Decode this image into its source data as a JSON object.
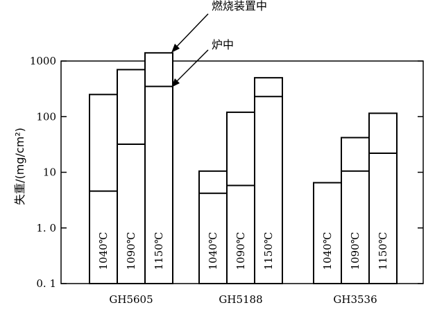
{
  "chart_data": {
    "type": "bar",
    "scale": "log",
    "ylim": [
      0.1,
      1000
    ],
    "ylabel": "失重/(mg/cm²)",
    "y_ticks": [
      {
        "value": 1000,
        "label": "1000"
      },
      {
        "value": 100,
        "label": "100"
      },
      {
        "value": 10,
        "label": "10"
      },
      {
        "value": 1,
        "label": "1. 0"
      },
      {
        "value": 0.1,
        "label": "0. 1"
      }
    ],
    "groups": [
      {
        "name": "GH5605",
        "bars": [
          {
            "temp": "1040℃",
            "furnace": 4.6,
            "burner": 250
          },
          {
            "temp": "1090℃",
            "furnace": 32,
            "burner": 700
          },
          {
            "temp": "1150℃",
            "furnace": 350,
            "burner": 1400
          }
        ]
      },
      {
        "name": "GH5188",
        "bars": [
          {
            "temp": "1040℃",
            "furnace": 4.2,
            "burner": 10.5
          },
          {
            "temp": "1090℃",
            "furnace": 5.8,
            "burner": 120
          },
          {
            "temp": "1150℃",
            "furnace": 230,
            "burner": 500
          }
        ]
      },
      {
        "name": "GH3536",
        "bars": [
          {
            "temp": "1040℃",
            "furnace": null,
            "burner": 6.5
          },
          {
            "temp": "1090℃",
            "furnace": 10.5,
            "burner": 42
          },
          {
            "temp": "1150℃",
            "furnace": 22,
            "burner": 115
          }
        ]
      }
    ],
    "annotations": [
      {
        "text": "燃烧装置中"
      },
      {
        "text": "炉中"
      }
    ]
  }
}
